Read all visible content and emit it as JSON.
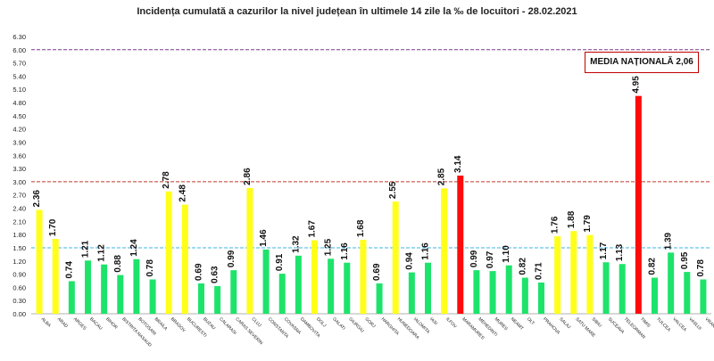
{
  "chart_data": {
    "type": "bar",
    "title": "Incidența cumulată a cazurilor la nivel județean în ultimele 14 zile la ‰ de locuitori - 28.02.2021",
    "xlabel": "",
    "ylabel": "",
    "ylim": [
      0,
      6.3
    ],
    "yticks": [
      "0.00",
      "0.30",
      "0.60",
      "0.90",
      "1.20",
      "1.50",
      "1.80",
      "2.10",
      "2.40",
      "2.70",
      "3.00",
      "3.30",
      "3.60",
      "3.90",
      "4.20",
      "4.50",
      "4.80",
      "5.10",
      "5.40",
      "5.70",
      "6.00",
      "6.30"
    ],
    "categories": [
      "ALBA",
      "ARAD",
      "ARGES",
      "BACAU",
      "BIHOR",
      "BISTRITA NASAUD",
      "BOTOSANI",
      "BRAILA",
      "BRASOV",
      "BUCURESTI",
      "BUZAU",
      "CALARASI",
      "CARAS SEVERIN",
      "CLUJ",
      "CONSTANTA",
      "COVASNA",
      "DAMBOVITA",
      "DOLJ",
      "GALATI",
      "GIURGIU",
      "GORJ",
      "HARGHITA",
      "HUNEDOARA",
      "IALOMITA",
      "IASI",
      "ILFOV",
      "MARAMURES",
      "MEHEDINTI",
      "MURES",
      "NEAMT",
      "OLT",
      "PRAHOVA",
      "SALAJ",
      "SATU MARE",
      "SIBIU",
      "SUCEAVA",
      "TELEORMAN",
      "TIMIS",
      "TULCEA",
      "VALCEA",
      "VASLUI",
      "VRANCEA"
    ],
    "values": [
      2.36,
      1.7,
      0.74,
      1.21,
      1.12,
      0.88,
      1.24,
      0.78,
      2.78,
      2.48,
      0.69,
      0.63,
      0.99,
      2.86,
      1.46,
      0.91,
      1.32,
      1.67,
      1.25,
      1.16,
      1.68,
      0.69,
      2.55,
      0.94,
      1.16,
      2.85,
      3.14,
      0.99,
      0.97,
      1.1,
      0.82,
      0.71,
      1.76,
      1.88,
      1.79,
      1.17,
      1.13,
      4.95,
      0.82,
      1.39,
      0.95,
      0.78
    ],
    "value_labels": [
      "2.36",
      "1.70",
      "0.74",
      "1.21",
      "1.12",
      "0.88",
      "1.24",
      "0.78",
      "2.78",
      "2.48",
      "0.69",
      "0.63",
      "0.99",
      "2.86",
      "1.46",
      "0.91",
      "1.32",
      "1.67",
      "1.25",
      "1.16",
      "1.68",
      "0.69",
      "2.55",
      "0.94",
      "1.16",
      "2.85",
      "3.14",
      "0.99",
      "0.97",
      "1.10",
      "0.82",
      "0.71",
      "1.76",
      "1.88",
      "1.79",
      "1.17",
      "1.13",
      "4.95",
      "0.82",
      "1.39",
      "0.95",
      "0.78"
    ],
    "thresholds": [
      {
        "value": 1.5,
        "color": "#3cb4e6"
      },
      {
        "value": 3.0,
        "color": "#c0392b"
      },
      {
        "value": 6.0,
        "color": "#7a3a8a"
      }
    ],
    "color_rules": [
      {
        "max": 1.5,
        "color": "#1ee36b"
      },
      {
        "max": 3.0,
        "color": "#ffff1a"
      },
      {
        "max": 99,
        "color": "#ff0a0a"
      }
    ],
    "annotation": "MEDIA NAȚIONALĂ 2,06",
    "grid": false,
    "legend": "none"
  }
}
